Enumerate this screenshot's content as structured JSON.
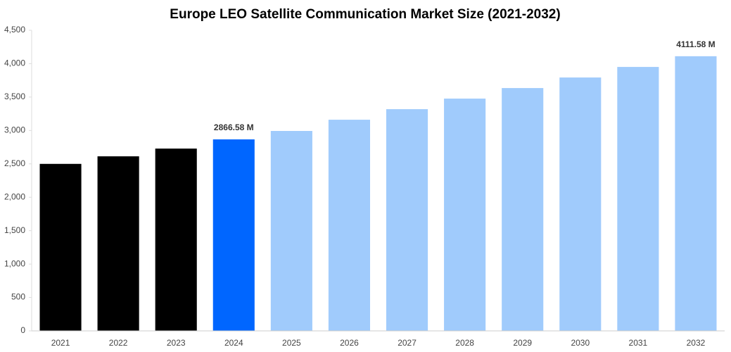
{
  "chart_data": {
    "type": "bar",
    "title": "Europe LEO Satellite Communication Market Size (2021-2032)",
    "categories": [
      "2021",
      "2022",
      "2023",
      "2024",
      "2025",
      "2026",
      "2027",
      "2028",
      "2029",
      "2030",
      "2031",
      "2032"
    ],
    "values": [
      2500,
      2613,
      2729,
      2866.58,
      2993,
      3161,
      3319,
      3477,
      3635,
      3793,
      3951,
      4111.58
    ],
    "value_labels": [
      null,
      null,
      null,
      "2866.58 M",
      null,
      null,
      null,
      null,
      null,
      null,
      null,
      "4111.58 M"
    ],
    "colors": [
      "#000000",
      "#000000",
      "#000000",
      "#0066ff",
      "#a0cbfc",
      "#a0cbfc",
      "#a0cbfc",
      "#a0cbfc",
      "#a0cbfc",
      "#a0cbfc",
      "#a0cbfc",
      "#a0cbfc"
    ],
    "ylim": [
      0,
      4500
    ],
    "yticks": [
      0,
      500,
      {
        "value": 1000,
        "label": "1,000"
      },
      {
        "value": 1500,
        "label": "1,500"
      },
      {
        "value": 2000,
        "label": "2,000"
      },
      {
        "value": 2500,
        "label": "2,500"
      },
      {
        "value": 3000,
        "label": "3,000"
      },
      {
        "value": 3500,
        "label": "3,500"
      },
      {
        "value": 4000,
        "label": "4,000"
      },
      {
        "value": 4500,
        "label": "4,500"
      }
    ],
    "grid": false
  }
}
